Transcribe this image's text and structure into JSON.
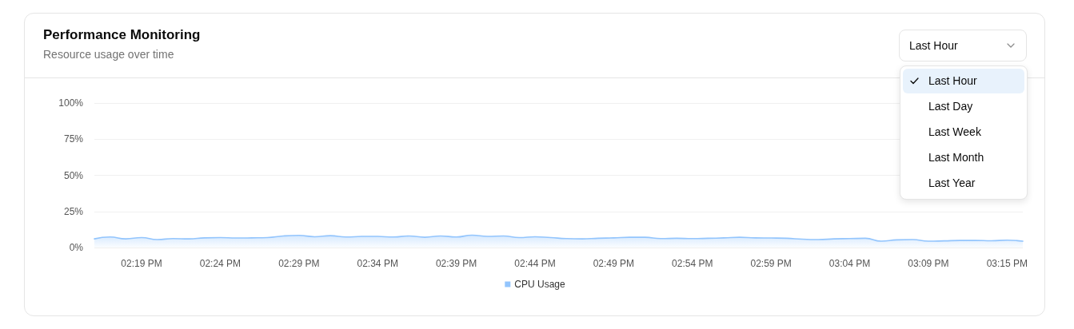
{
  "chart_data": {
    "type": "area",
    "title": "Performance Monitoring",
    "subtitle": "Resource usage over time",
    "categories": [
      null,
      null,
      null,
      "02:19 PM",
      null,
      null,
      null,
      null,
      "02:24 PM",
      null,
      null,
      null,
      null,
      "02:29 PM",
      null,
      null,
      null,
      null,
      "02:34 PM",
      null,
      null,
      null,
      null,
      "02:39 PM",
      null,
      null,
      null,
      null,
      "02:44 PM",
      null,
      null,
      null,
      null,
      "02:49 PM",
      null,
      null,
      null,
      null,
      "02:54 PM",
      null,
      null,
      null,
      null,
      "02:59 PM",
      null,
      null,
      null,
      null,
      "03:04 PM",
      null,
      null,
      null,
      null,
      "03:09 PM",
      null,
      null,
      null,
      null,
      "03:15 PM",
      null
    ],
    "series": [
      {
        "name": "CPU Usage",
        "color": "#93c5fd",
        "values": [
          6.0,
          7.3,
          6.0,
          6.9,
          5.5,
          6.2,
          6.0,
          6.7,
          6.9,
          6.6,
          6.7,
          6.9,
          8.0,
          8.4,
          7.5,
          8.2,
          7.3,
          7.7,
          7.7,
          7.3,
          8.0,
          7.1,
          8.0,
          7.3,
          8.6,
          7.7,
          8.0,
          6.9,
          7.5,
          6.9,
          6.2,
          6.0,
          6.4,
          6.7,
          7.1,
          7.1,
          6.2,
          6.4,
          6.2,
          6.4,
          6.7,
          7.1,
          6.7,
          6.6,
          6.4,
          5.8,
          5.5,
          6.0,
          6.2,
          6.4,
          4.4,
          5.3,
          5.5,
          4.4,
          4.6,
          4.9,
          4.9,
          4.7,
          5.1,
          4.4
        ]
      }
    ],
    "ylim": [
      0,
      100
    ],
    "yticks": [
      {
        "value": 0,
        "label": "0%"
      },
      {
        "value": 25,
        "label": "25%"
      },
      {
        "value": 50,
        "label": "50%"
      },
      {
        "value": 75,
        "label": "75%"
      },
      {
        "value": 100,
        "label": "100%"
      }
    ],
    "grid": "y",
    "legend": "bottom",
    "marker": "none",
    "annotations": [
      "Last Hour",
      "Last Day",
      "Last Week",
      "Last Month",
      "Last Year"
    ]
  }
}
